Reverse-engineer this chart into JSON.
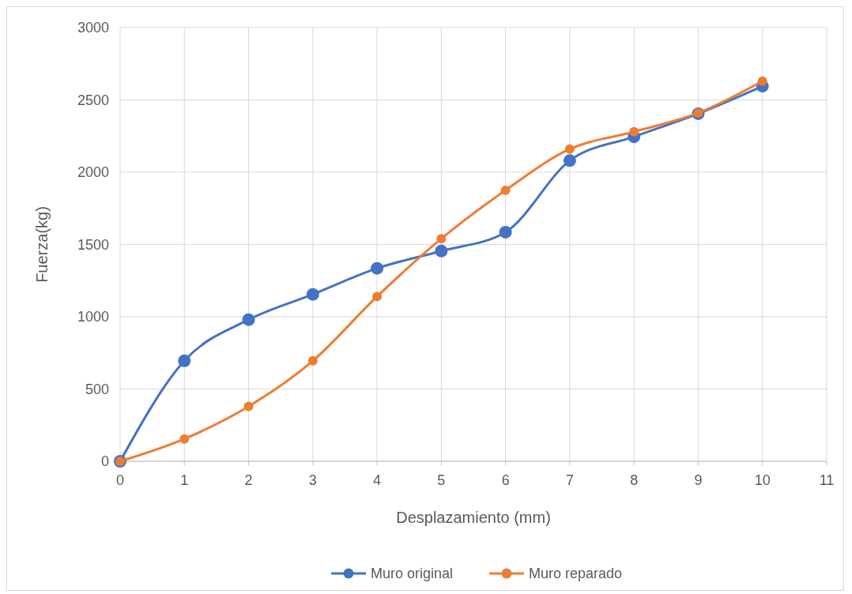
{
  "chart_data": {
    "type": "line",
    "xlabel": "Desplazamiento (mm)",
    "ylabel": "Fuerza(kg)",
    "x": [
      0,
      1,
      2,
      3,
      4,
      5,
      6,
      7,
      8,
      9,
      10
    ],
    "series": [
      {
        "name": "Muro original",
        "color": "#4472c4",
        "values": [
          0,
          695,
          980,
          1155,
          1335,
          1455,
          1585,
          2080,
          2245,
          2405,
          2595
        ]
      },
      {
        "name": "Muro reparado",
        "color": "#ed7d31",
        "values": [
          0,
          155,
          380,
          695,
          1140,
          1540,
          1875,
          2160,
          2280,
          2410,
          2630
        ]
      }
    ],
    "xlim": [
      0,
      11
    ],
    "xticks": [
      0,
      1,
      2,
      3,
      4,
      5,
      6,
      7,
      8,
      9,
      10,
      11
    ],
    "ylim": [
      0,
      3000
    ],
    "yticks": [
      0,
      500,
      1000,
      1500,
      2000,
      2500,
      3000
    ],
    "grid": true,
    "legend": "bottom",
    "marker": "circle",
    "line_style": "solid"
  }
}
